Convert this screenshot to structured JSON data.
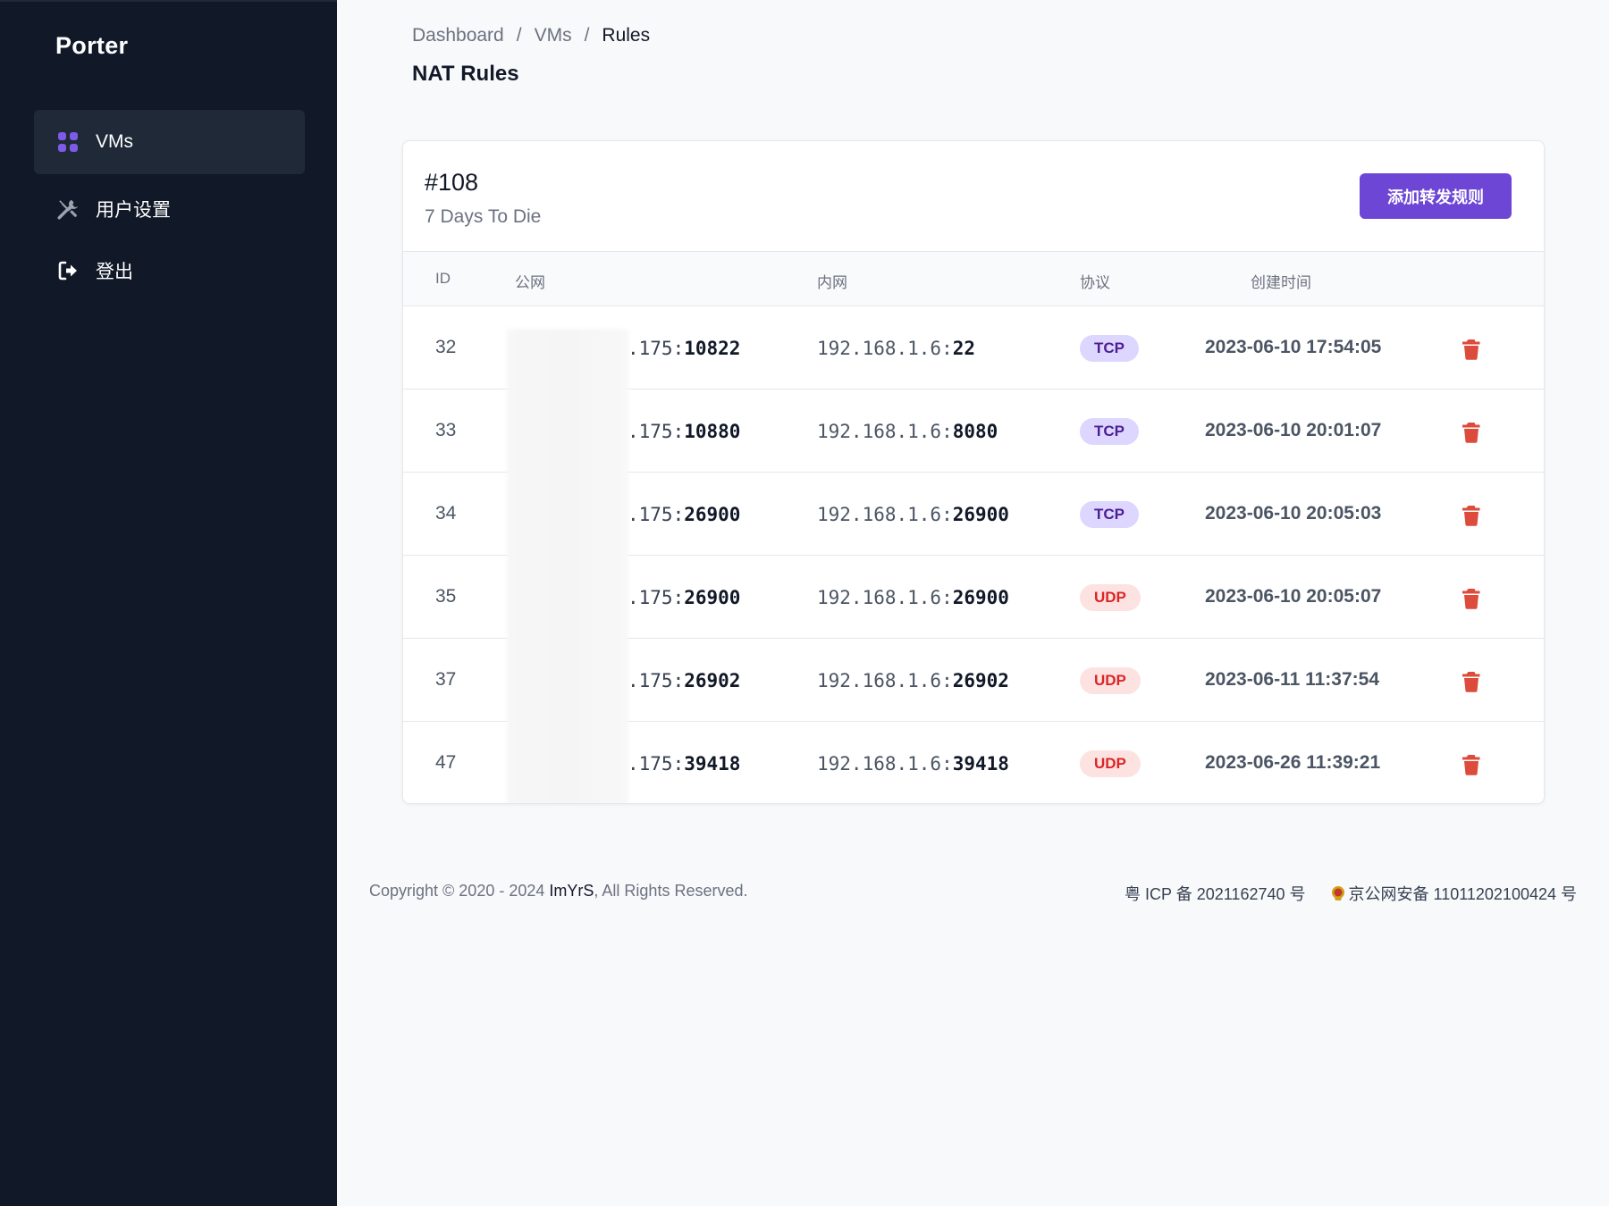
{
  "app": {
    "brand": "Porter"
  },
  "sidebar": {
    "items": [
      {
        "label": "VMs",
        "icon": "grid-icon",
        "active": true
      },
      {
        "label": "用户设置",
        "icon": "tools-icon",
        "active": false
      },
      {
        "label": "登出",
        "icon": "logout-icon",
        "active": false
      }
    ]
  },
  "breadcrumb": {
    "items": [
      "Dashboard",
      "VMs",
      "Rules"
    ],
    "separator": "/"
  },
  "page": {
    "title": "NAT Rules"
  },
  "vm": {
    "id": "#108",
    "subtitle": "7 Days To Die",
    "add_button": "添加转发规则"
  },
  "table": {
    "headers": [
      "ID",
      "公网",
      "内网",
      "协议",
      "创建时间"
    ],
    "rows": [
      {
        "id": "32",
        "public_suffix": ".175:",
        "public_port": "10822",
        "private_ip": "192.168.1.6:",
        "private_port": "22",
        "protocol": "TCP",
        "created": "2023-06-10 17:54:05"
      },
      {
        "id": "33",
        "public_suffix": ".175:",
        "public_port": "10880",
        "private_ip": "192.168.1.6:",
        "private_port": "8080",
        "protocol": "TCP",
        "created": "2023-06-10 20:01:07"
      },
      {
        "id": "34",
        "public_suffix": ".175:",
        "public_port": "26900",
        "private_ip": "192.168.1.6:",
        "private_port": "26900",
        "protocol": "TCP",
        "created": "2023-06-10 20:05:03"
      },
      {
        "id": "35",
        "public_suffix": ".175:",
        "public_port": "26900",
        "private_ip": "192.168.1.6:",
        "private_port": "26900",
        "protocol": "UDP",
        "created": "2023-06-10 20:05:07"
      },
      {
        "id": "37",
        "public_suffix": ".175:",
        "public_port": "26902",
        "private_ip": "192.168.1.6:",
        "private_port": "26902",
        "protocol": "UDP",
        "created": "2023-06-11 11:37:54"
      },
      {
        "id": "47",
        "public_suffix": ".175:",
        "public_port": "39418",
        "private_ip": "192.168.1.6:",
        "private_port": "39418",
        "protocol": "UDP",
        "created": "2023-06-26 11:39:21"
      }
    ]
  },
  "footer": {
    "copyright_prefix": "Copyright © 2020 - 2024 ",
    "owner": "ImYrS",
    "copyright_suffix": ", All Rights Reserved.",
    "icp": "粤 ICP 备 2021162740 号",
    "police": "京公网安备 11011202100424 号"
  },
  "colors": {
    "sidebar_bg": "#111827",
    "accent": "#6d46d6",
    "tcp_badge": "#ddd6fe",
    "udp_badge": "#fde2e2",
    "delete": "#dc4b3b"
  }
}
